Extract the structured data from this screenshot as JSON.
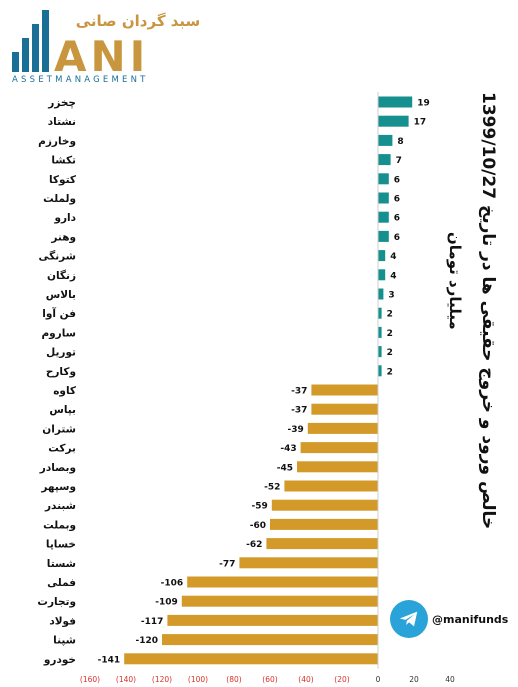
{
  "logo": {
    "persian_text": "سبد گردان صانی",
    "letters": "ANI",
    "tagline": "ASSETMANAGEMENT",
    "colors": {
      "bars": "#1a6f96",
      "text": "#c8963e"
    }
  },
  "title": {
    "main": "خالص ورود و خروج حقیقی ها در تاریخ 1399/10/27",
    "unit": "میلیارد تومان"
  },
  "telegram": {
    "handle": "@manifunds",
    "icon": "telegram-icon",
    "color": "#2aa3d8"
  },
  "chart_data": {
    "type": "bar",
    "orientation": "horizontal",
    "categories": [
      "چخزر",
      "نشتاد",
      "وخارزم",
      "تکشا",
      "کتوکا",
      "ولملت",
      "دارو",
      "وهنر",
      "شرنگی",
      "زنگان",
      "بالاس",
      "فن آوا",
      "ساروم",
      "توریل",
      "وکارح",
      "کاوه",
      "بپاس",
      "شتران",
      "برکت",
      "وبصادر",
      "وسپهر",
      "شبندر",
      "وبملت",
      "خساپا",
      "شستا",
      "فملی",
      "وتجارت",
      "فولاد",
      "شپنا",
      "خودرو"
    ],
    "values": [
      19,
      17,
      8,
      7,
      6,
      6,
      6,
      6,
      4,
      4,
      3,
      2,
      2,
      2,
      2,
      -37,
      -37,
      -39,
      -43,
      -45,
      -52,
      -59,
      -60,
      -62,
      -77,
      -106,
      -109,
      -117,
      -120,
      -141
    ],
    "xlim": [
      -160,
      40
    ],
    "x_ticks": [
      -160,
      -140,
      -120,
      -100,
      -80,
      -60,
      -40,
      -20,
      0,
      20,
      40
    ],
    "x_tick_labels": [
      "(160)",
      "(140)",
      "(120)",
      "(100)",
      "(80)",
      "(60)",
      "(40)",
      "(20)",
      "0",
      "20",
      "40"
    ],
    "colors": {
      "positive": "#168f8f",
      "negative": "#d39a2a",
      "tick_negative": "#d9322b",
      "tick_positive": "#333333"
    },
    "grid": false,
    "data_labels": true
  }
}
